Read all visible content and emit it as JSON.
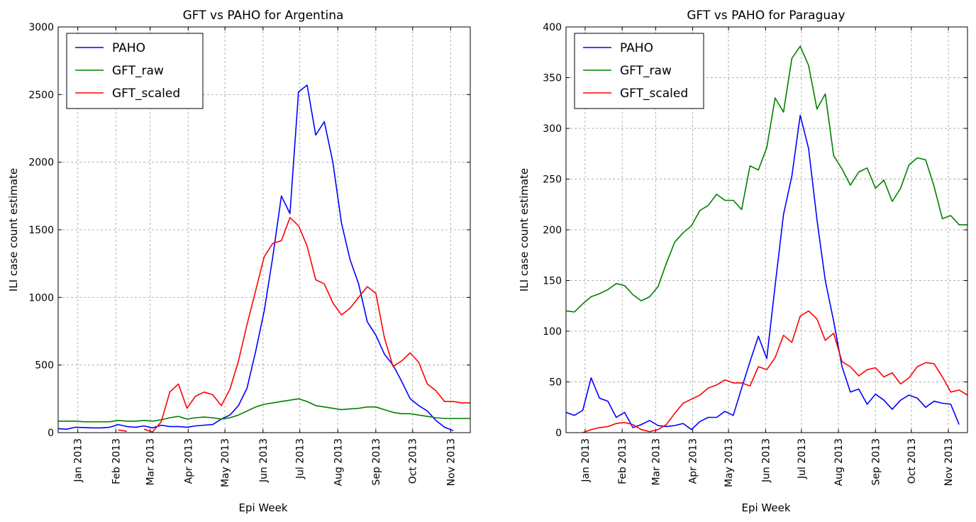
{
  "chart_data": [
    {
      "type": "line",
      "title": "GFT vs PAHO for Argentina",
      "xlabel": "Epi Week",
      "ylabel": "ILI case count estimate",
      "ylim": [
        0,
        3000
      ],
      "yticks": [
        0,
        500,
        1000,
        1500,
        2000,
        2500,
        3000
      ],
      "xlim": [
        "2012-12-16",
        "2013-11-17"
      ],
      "xticks": [
        {
          "label": "Jan 2013",
          "date": "2013-01-01"
        },
        {
          "label": "Feb 2013",
          "date": "2013-02-01"
        },
        {
          "label": "Mar 2013",
          "date": "2013-03-01"
        },
        {
          "label": "Apr 2013",
          "date": "2013-04-01"
        },
        {
          "label": "May 2013",
          "date": "2013-05-01"
        },
        {
          "label": "Jun 2013",
          "date": "2013-06-01"
        },
        {
          "label": "Jul 2013",
          "date": "2013-07-01"
        },
        {
          "label": "Aug 2013",
          "date": "2013-08-01"
        },
        {
          "label": "Sep 2013",
          "date": "2013-09-01"
        },
        {
          "label": "Oct 2013",
          "date": "2013-10-01"
        },
        {
          "label": "Nov 2013",
          "date": "2013-11-01"
        }
      ],
      "grid": true,
      "legend": "top-left",
      "x": [
        "2012-12-16",
        "2012-12-23",
        "2012-12-30",
        "2013-01-06",
        "2013-01-13",
        "2013-01-20",
        "2013-01-27",
        "2013-02-03",
        "2013-02-10",
        "2013-02-17",
        "2013-02-24",
        "2013-03-03",
        "2013-03-10",
        "2013-03-17",
        "2013-03-24",
        "2013-03-31",
        "2013-04-07",
        "2013-04-14",
        "2013-04-21",
        "2013-04-28",
        "2013-05-05",
        "2013-05-12",
        "2013-05-19",
        "2013-05-26",
        "2013-06-02",
        "2013-06-09",
        "2013-06-16",
        "2013-06-23",
        "2013-06-30",
        "2013-07-07",
        "2013-07-14",
        "2013-07-21",
        "2013-07-28",
        "2013-08-04",
        "2013-08-11",
        "2013-08-18",
        "2013-08-25",
        "2013-09-01",
        "2013-09-08",
        "2013-09-15",
        "2013-09-22",
        "2013-09-29",
        "2013-10-06",
        "2013-10-13",
        "2013-10-20",
        "2013-10-27",
        "2013-11-03",
        "2013-11-10",
        "2013-11-17"
      ],
      "series": [
        {
          "name": "PAHO",
          "color": "#0000ff",
          "values": [
            30,
            25,
            40,
            38,
            35,
            35,
            40,
            60,
            45,
            40,
            50,
            35,
            55,
            45,
            45,
            40,
            50,
            55,
            60,
            100,
            130,
            200,
            330,
            600,
            900,
            1300,
            1750,
            1620,
            2520,
            2570,
            2200,
            2300,
            2000,
            1550,
            1280,
            1100,
            820,
            720,
            580,
            500,
            380,
            250,
            200,
            160,
            90,
            40,
            15,
            null,
            null
          ]
        },
        {
          "name": "GFT_raw",
          "color": "#008000",
          "values": [
            85,
            85,
            85,
            80,
            80,
            80,
            80,
            90,
            85,
            85,
            90,
            85,
            95,
            110,
            120,
            100,
            110,
            115,
            110,
            100,
            110,
            130,
            160,
            190,
            210,
            220,
            230,
            240,
            250,
            230,
            200,
            190,
            180,
            170,
            175,
            180,
            190,
            190,
            170,
            150,
            140,
            140,
            130,
            120,
            110,
            105,
            105,
            105,
            105
          ]
        },
        {
          "name": "GFT_scaled",
          "color": "#ff0000",
          "values": [
            null,
            null,
            null,
            null,
            null,
            null,
            null,
            20,
            10,
            null,
            25,
            5,
            80,
            300,
            360,
            180,
            270,
            300,
            280,
            200,
            320,
            530,
            800,
            1050,
            1300,
            1400,
            1420,
            1590,
            1530,
            1380,
            1130,
            1100,
            960,
            870,
            920,
            1000,
            1080,
            1030,
            700,
            490,
            530,
            590,
            520,
            360,
            310,
            230,
            230,
            220,
            220
          ]
        }
      ]
    },
    {
      "type": "line",
      "title": "GFT vs PAHO for Paraguay",
      "xlabel": "Epi Week",
      "ylabel": "ILI case count estimate",
      "ylim": [
        0,
        400
      ],
      "yticks": [
        0,
        50,
        100,
        150,
        200,
        250,
        300,
        350,
        400
      ],
      "xlim": [
        "2012-12-16",
        "2013-11-17"
      ],
      "xticks": [
        {
          "label": "Jan 2013",
          "date": "2013-01-01"
        },
        {
          "label": "Feb 2013",
          "date": "2013-02-01"
        },
        {
          "label": "Mar 2013",
          "date": "2013-03-01"
        },
        {
          "label": "Apr 2013",
          "date": "2013-04-01"
        },
        {
          "label": "May 2013",
          "date": "2013-05-01"
        },
        {
          "label": "Jun 2013",
          "date": "2013-06-01"
        },
        {
          "label": "Jul 2013",
          "date": "2013-07-01"
        },
        {
          "label": "Aug 2013",
          "date": "2013-08-01"
        },
        {
          "label": "Sep 2013",
          "date": "2013-09-01"
        },
        {
          "label": "Oct 2013",
          "date": "2013-10-01"
        },
        {
          "label": "Nov 2013",
          "date": "2013-11-01"
        }
      ],
      "grid": true,
      "legend": "top-left",
      "x": [
        "2012-12-16",
        "2012-12-23",
        "2012-12-30",
        "2013-01-06",
        "2013-01-13",
        "2013-01-20",
        "2013-01-27",
        "2013-02-03",
        "2013-02-10",
        "2013-02-17",
        "2013-02-24",
        "2013-03-03",
        "2013-03-10",
        "2013-03-17",
        "2013-03-24",
        "2013-03-31",
        "2013-04-07",
        "2013-04-14",
        "2013-04-21",
        "2013-04-28",
        "2013-05-05",
        "2013-05-12",
        "2013-05-19",
        "2013-05-26",
        "2013-06-02",
        "2013-06-09",
        "2013-06-16",
        "2013-06-23",
        "2013-06-30",
        "2013-07-07",
        "2013-07-14",
        "2013-07-21",
        "2013-07-28",
        "2013-08-04",
        "2013-08-11",
        "2013-08-18",
        "2013-08-25",
        "2013-09-01",
        "2013-09-08",
        "2013-09-15",
        "2013-09-22",
        "2013-09-29",
        "2013-10-06",
        "2013-10-13",
        "2013-10-20",
        "2013-10-27",
        "2013-11-03",
        "2013-11-10",
        "2013-11-17"
      ],
      "series": [
        {
          "name": "PAHO",
          "color": "#0000ff",
          "values": [
            20,
            17,
            22,
            54,
            34,
            31,
            15,
            20,
            5,
            8,
            12,
            7,
            6,
            7,
            9,
            3,
            11,
            15,
            15,
            21,
            17,
            44,
            70,
            95,
            73,
            145,
            215,
            253,
            313,
            280,
            210,
            150,
            110,
            65,
            40,
            43,
            28,
            38,
            32,
            23,
            32,
            37,
            34,
            25,
            31,
            29,
            28,
            8,
            null
          ]
        },
        {
          "name": "GFT_raw",
          "color": "#008000",
          "values": [
            120,
            119,
            127,
            134,
            137,
            141,
            147,
            145,
            136,
            130,
            134,
            144,
            167,
            188,
            197,
            204,
            219,
            224,
            235,
            229,
            229,
            220,
            263,
            259,
            281,
            330,
            316,
            369,
            381,
            362,
            319,
            334,
            273,
            260,
            244,
            257,
            261,
            241,
            249,
            228,
            241,
            264,
            271,
            269,
            243,
            211,
            214,
            205,
            205
          ]
        },
        {
          "name": "GFT_scaled",
          "color": "#ff0000",
          "values": [
            null,
            null,
            0,
            3,
            5,
            6,
            9,
            10,
            8,
            3,
            1,
            3,
            8,
            19,
            29,
            33,
            37,
            44,
            47,
            52,
            49,
            49,
            46,
            65,
            62,
            74,
            96,
            89,
            115,
            120,
            112,
            91,
            98,
            70,
            65,
            56,
            62,
            64,
            55,
            59,
            48,
            54,
            65,
            69,
            68,
            55,
            40,
            42,
            37
          ]
        }
      ]
    }
  ]
}
